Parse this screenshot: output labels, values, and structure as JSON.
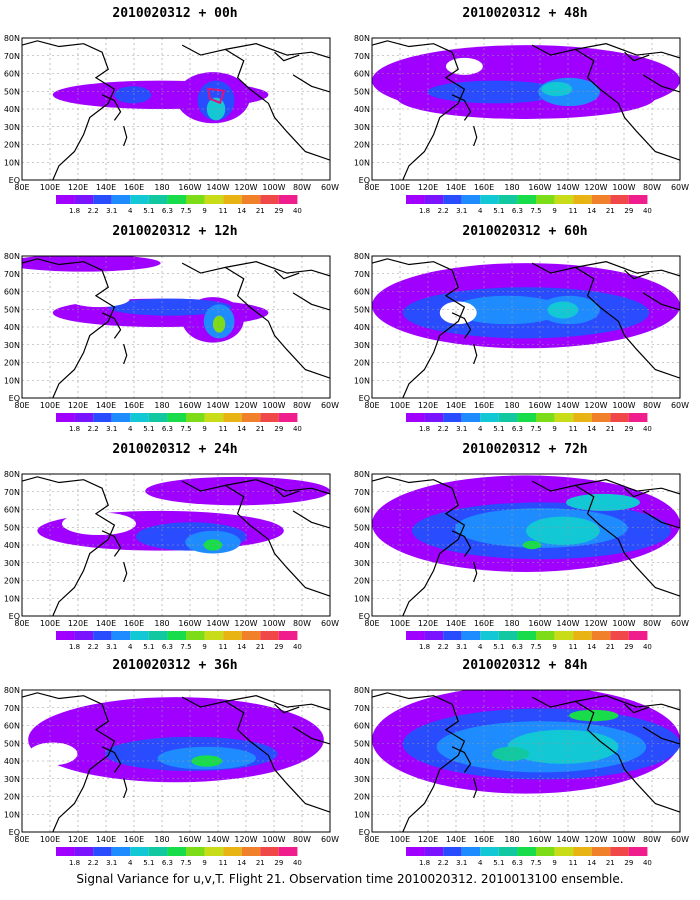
{
  "caption": "Signal Variance for u,v,T. Flight 21. Observation time 2010020312. 2010013100 ensemble.",
  "lat_labels": [
    "80N",
    "70N",
    "60N",
    "50N",
    "40N",
    "30N",
    "20N",
    "10N",
    "EQ"
  ],
  "lon_labels": [
    "80E",
    "100E",
    "120E",
    "140E",
    "160E",
    "180",
    "160W",
    "140W",
    "120W",
    "100W",
    "80W",
    "60W"
  ],
  "legend_levels": [
    "1.8",
    "2.2",
    "3.1",
    "4",
    "5.1",
    "6.3",
    "7.5",
    "9",
    "11",
    "14",
    "21",
    "29",
    "40"
  ],
  "legend_colors": [
    "#a000ff",
    "#7a14ff",
    "#2a4cff",
    "#1e8cff",
    "#12c8d4",
    "#12c8a0",
    "#18dc4a",
    "#7cdc18",
    "#c8dc18",
    "#e8b414",
    "#f0802a",
    "#f04848",
    "#f01e8c"
  ],
  "panels": [
    {
      "title": "2010020312 + 00h"
    },
    {
      "title": "2010020312 + 48h"
    },
    {
      "title": "2010020312 + 12h"
    },
    {
      "title": "2010020312 + 60h"
    },
    {
      "title": "2010020312 + 24h"
    },
    {
      "title": "2010020312 + 72h"
    },
    {
      "title": "2010020312 + 36h"
    },
    {
      "title": "2010020312 + 84h"
    }
  ]
}
